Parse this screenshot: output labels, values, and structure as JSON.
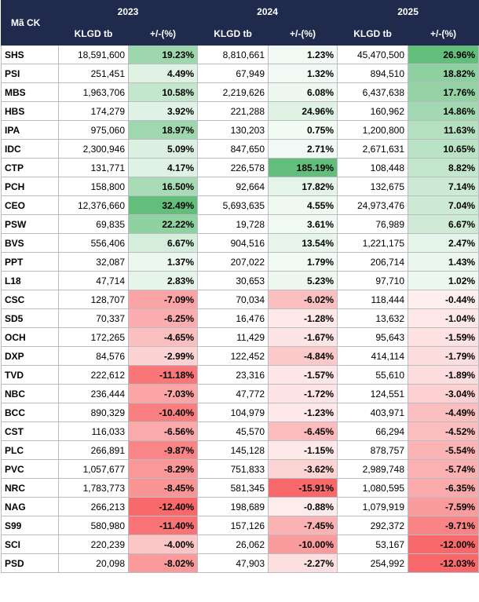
{
  "header": {
    "code_label": "Mã CK",
    "years": [
      "2023",
      "2024",
      "2025"
    ],
    "volume_label": "KLGD tb",
    "change_label": "+/-(%)"
  },
  "colors": {
    "header_bg": "#1f2a4d",
    "positive": "#63be7b",
    "negative": "#f8696b"
  },
  "rows": [
    {
      "code": "SHS",
      "y2023": {
        "vol": "18,591,600",
        "pct": "19.23%",
        "v": 19.23
      },
      "y2024": {
        "vol": "8,810,661",
        "pct": "1.23%",
        "v": 1.23
      },
      "y2025": {
        "vol": "45,470,500",
        "pct": "26.96%",
        "v": 26.96
      }
    },
    {
      "code": "PSI",
      "y2023": {
        "vol": "251,451",
        "pct": "4.49%",
        "v": 4.49
      },
      "y2024": {
        "vol": "67,949",
        "pct": "1.32%",
        "v": 1.32
      },
      "y2025": {
        "vol": "894,510",
        "pct": "18.82%",
        "v": 18.82
      }
    },
    {
      "code": "MBS",
      "y2023": {
        "vol": "1,963,706",
        "pct": "10.58%",
        "v": 10.58
      },
      "y2024": {
        "vol": "2,219,626",
        "pct": "6.08%",
        "v": 6.08
      },
      "y2025": {
        "vol": "6,437,638",
        "pct": "17.76%",
        "v": 17.76
      }
    },
    {
      "code": "HBS",
      "y2023": {
        "vol": "174,279",
        "pct": "3.92%",
        "v": 3.92
      },
      "y2024": {
        "vol": "221,288",
        "pct": "24.96%",
        "v": 24.96
      },
      "y2025": {
        "vol": "160,962",
        "pct": "14.86%",
        "v": 14.86
      }
    },
    {
      "code": "IPA",
      "y2023": {
        "vol": "975,060",
        "pct": "18.97%",
        "v": 18.97
      },
      "y2024": {
        "vol": "130,203",
        "pct": "0.75%",
        "v": 0.75
      },
      "y2025": {
        "vol": "1,200,800",
        "pct": "11.63%",
        "v": 11.63
      }
    },
    {
      "code": "IDC",
      "y2023": {
        "vol": "2,300,946",
        "pct": "5.09%",
        "v": 5.09
      },
      "y2024": {
        "vol": "847,650",
        "pct": "2.71%",
        "v": 2.71
      },
      "y2025": {
        "vol": "2,671,631",
        "pct": "10.65%",
        "v": 10.65
      }
    },
    {
      "code": "CTP",
      "y2023": {
        "vol": "131,771",
        "pct": "4.17%",
        "v": 4.17
      },
      "y2024": {
        "vol": "226,578",
        "pct": "185.19%",
        "v": 185.19
      },
      "y2025": {
        "vol": "108,448",
        "pct": "8.82%",
        "v": 8.82
      }
    },
    {
      "code": "PCH",
      "y2023": {
        "vol": "158,800",
        "pct": "16.50%",
        "v": 16.5
      },
      "y2024": {
        "vol": "92,664",
        "pct": "17.82%",
        "v": 17.82
      },
      "y2025": {
        "vol": "132,675",
        "pct": "7.14%",
        "v": 7.14
      }
    },
    {
      "code": "CEO",
      "y2023": {
        "vol": "12,376,660",
        "pct": "32.49%",
        "v": 32.49
      },
      "y2024": {
        "vol": "5,693,635",
        "pct": "4.55%",
        "v": 4.55
      },
      "y2025": {
        "vol": "24,973,476",
        "pct": "7.04%",
        "v": 7.04
      }
    },
    {
      "code": "PSW",
      "y2023": {
        "vol": "69,835",
        "pct": "22.22%",
        "v": 22.22
      },
      "y2024": {
        "vol": "19,728",
        "pct": "3.61%",
        "v": 3.61
      },
      "y2025": {
        "vol": "76,989",
        "pct": "6.67%",
        "v": 6.67
      }
    },
    {
      "code": "BVS",
      "y2023": {
        "vol": "556,406",
        "pct": "6.67%",
        "v": 6.67
      },
      "y2024": {
        "vol": "904,516",
        "pct": "13.54%",
        "v": 13.54
      },
      "y2025": {
        "vol": "1,221,175",
        "pct": "2.47%",
        "v": 2.47
      }
    },
    {
      "code": "PPT",
      "y2023": {
        "vol": "32,087",
        "pct": "1.37%",
        "v": 1.37
      },
      "y2024": {
        "vol": "207,022",
        "pct": "1.79%",
        "v": 1.79
      },
      "y2025": {
        "vol": "206,714",
        "pct": "1.43%",
        "v": 1.43
      }
    },
    {
      "code": "L18",
      "y2023": {
        "vol": "47,714",
        "pct": "2.83%",
        "v": 2.83
      },
      "y2024": {
        "vol": "30,653",
        "pct": "5.23%",
        "v": 5.23
      },
      "y2025": {
        "vol": "97,710",
        "pct": "1.02%",
        "v": 1.02
      }
    },
    {
      "code": "CSC",
      "y2023": {
        "vol": "128,707",
        "pct": "-7.09%",
        "v": -7.09
      },
      "y2024": {
        "vol": "70,034",
        "pct": "-6.02%",
        "v": -6.02
      },
      "y2025": {
        "vol": "118,444",
        "pct": "-0.44%",
        "v": -0.44
      }
    },
    {
      "code": "SD5",
      "y2023": {
        "vol": "70,337",
        "pct": "-6.25%",
        "v": -6.25
      },
      "y2024": {
        "vol": "16,476",
        "pct": "-1.28%",
        "v": -1.28
      },
      "y2025": {
        "vol": "13,632",
        "pct": "-1.04%",
        "v": -1.04
      }
    },
    {
      "code": "OCH",
      "y2023": {
        "vol": "172,265",
        "pct": "-4.65%",
        "v": -4.65
      },
      "y2024": {
        "vol": "11,429",
        "pct": "-1.67%",
        "v": -1.67
      },
      "y2025": {
        "vol": "95,643",
        "pct": "-1.59%",
        "v": -1.59
      }
    },
    {
      "code": "DXP",
      "y2023": {
        "vol": "84,576",
        "pct": "-2.99%",
        "v": -2.99
      },
      "y2024": {
        "vol": "122,452",
        "pct": "-4.84%",
        "v": -4.84
      },
      "y2025": {
        "vol": "414,114",
        "pct": "-1.79%",
        "v": -1.79
      }
    },
    {
      "code": "TVD",
      "y2023": {
        "vol": "222,612",
        "pct": "-11.18%",
        "v": -11.18
      },
      "y2024": {
        "vol": "23,316",
        "pct": "-1.57%",
        "v": -1.57
      },
      "y2025": {
        "vol": "55,610",
        "pct": "-1.89%",
        "v": -1.89
      }
    },
    {
      "code": "NBC",
      "y2023": {
        "vol": "236,444",
        "pct": "-7.03%",
        "v": -7.03
      },
      "y2024": {
        "vol": "47,772",
        "pct": "-1.72%",
        "v": -1.72
      },
      "y2025": {
        "vol": "124,551",
        "pct": "-3.04%",
        "v": -3.04
      }
    },
    {
      "code": "BCC",
      "y2023": {
        "vol": "890,329",
        "pct": "-10.40%",
        "v": -10.4
      },
      "y2024": {
        "vol": "104,979",
        "pct": "-1.23%",
        "v": -1.23
      },
      "y2025": {
        "vol": "403,971",
        "pct": "-4.49%",
        "v": -4.49
      }
    },
    {
      "code": "CST",
      "y2023": {
        "vol": "116,033",
        "pct": "-6.56%",
        "v": -6.56
      },
      "y2024": {
        "vol": "45,570",
        "pct": "-6.45%",
        "v": -6.45
      },
      "y2025": {
        "vol": "66,294",
        "pct": "-4.52%",
        "v": -4.52
      }
    },
    {
      "code": "PLC",
      "y2023": {
        "vol": "266,891",
        "pct": "-9.87%",
        "v": -9.87
      },
      "y2024": {
        "vol": "145,128",
        "pct": "-1.15%",
        "v": -1.15
      },
      "y2025": {
        "vol": "878,757",
        "pct": "-5.54%",
        "v": -5.54
      }
    },
    {
      "code": "PVC",
      "y2023": {
        "vol": "1,057,677",
        "pct": "-8.29%",
        "v": -8.29
      },
      "y2024": {
        "vol": "751,833",
        "pct": "-3.62%",
        "v": -3.62
      },
      "y2025": {
        "vol": "2,989,748",
        "pct": "-5.74%",
        "v": -5.74
      }
    },
    {
      "code": "NRC",
      "y2023": {
        "vol": "1,783,773",
        "pct": "-8.45%",
        "v": -8.45
      },
      "y2024": {
        "vol": "581,345",
        "pct": "-15.91%",
        "v": -15.91
      },
      "y2025": {
        "vol": "1,080,595",
        "pct": "-6.35%",
        "v": -6.35
      }
    },
    {
      "code": "NAG",
      "y2023": {
        "vol": "266,213",
        "pct": "-12.40%",
        "v": -12.4
      },
      "y2024": {
        "vol": "198,689",
        "pct": "-0.88%",
        "v": -0.88
      },
      "y2025": {
        "vol": "1,079,919",
        "pct": "-7.59%",
        "v": -7.59
      }
    },
    {
      "code": "S99",
      "y2023": {
        "vol": "580,980",
        "pct": "-11.40%",
        "v": -11.4
      },
      "y2024": {
        "vol": "157,126",
        "pct": "-7.45%",
        "v": -7.45
      },
      "y2025": {
        "vol": "292,372",
        "pct": "-9.71%",
        "v": -9.71
      }
    },
    {
      "code": "SCI",
      "y2023": {
        "vol": "220,239",
        "pct": "-4.00%",
        "v": -4.0
      },
      "y2024": {
        "vol": "26,062",
        "pct": "-10.00%",
        "v": -10.0
      },
      "y2025": {
        "vol": "53,167",
        "pct": "-12.00%",
        "v": -12.0
      }
    },
    {
      "code": "PSD",
      "y2023": {
        "vol": "20,098",
        "pct": "-8.02%",
        "v": -8.02
      },
      "y2024": {
        "vol": "47,903",
        "pct": "-2.27%",
        "v": -2.27
      },
      "y2025": {
        "vol": "254,992",
        "pct": "-12.03%",
        "v": -12.03
      }
    }
  ]
}
